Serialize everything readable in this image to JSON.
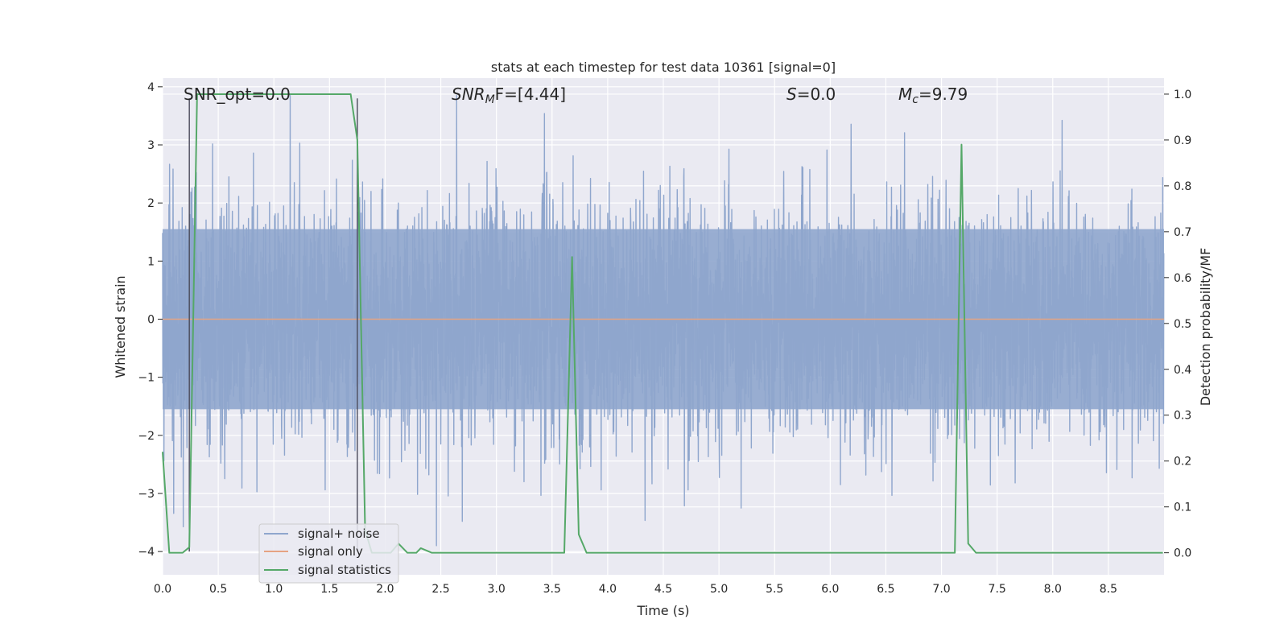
{
  "chart_data": {
    "type": "line",
    "title": "stats at each timestep for test data 10361 [signal=0]",
    "xlabel": "Time (s)",
    "ylabel": "Whitened strain",
    "y2label": "Detection probability/MF",
    "xlim": [
      0.0,
      9.0
    ],
    "ylim": [
      -4.4,
      4.15
    ],
    "y2lim": [
      -0.048,
      1.035
    ],
    "xticks": [
      "0.0",
      "0.5",
      "1.0",
      "1.5",
      "2.0",
      "2.5",
      "3.0",
      "3.5",
      "4.0",
      "4.5",
      "5.0",
      "5.5",
      "6.0",
      "6.5",
      "7.0",
      "7.5",
      "8.0",
      "8.5"
    ],
    "yticks": [
      "4",
      "3",
      "2",
      "1",
      "0",
      "−1",
      "−2",
      "−3",
      "−4"
    ],
    "y2ticks": [
      "1.0",
      "0.9",
      "0.8",
      "0.7",
      "0.6",
      "0.5",
      "0.4",
      "0.3",
      "0.2",
      "0.1",
      "0.0"
    ],
    "grid": true,
    "legend_position": "lower-left",
    "legend": [
      {
        "label": "signal+ noise",
        "color": "#8fa6cd"
      },
      {
        "label": "signal only",
        "color": "#e6a383"
      },
      {
        "label": "signal statistics",
        "color": "#55a868"
      }
    ],
    "annotations": {
      "snr_opt": "SNR_opt=0.0",
      "snr_mf": "SNR",
      "snr_mf_sub": "M",
      "snr_mf_rest": "F=[4.44]",
      "s": "S",
      "s_rest": "=0.0",
      "mc": "M",
      "mc_sub": "c",
      "mc_rest": "=9.79"
    },
    "noise": {
      "sample_rate_hz": 512,
      "core_amplitude": 1.55,
      "min": -3.9,
      "max": 3.85,
      "seed": 10361
    },
    "signal_only": {
      "value": 0.0
    },
    "vertical_markers": [
      {
        "x": 0.24,
        "y_top": 3.8,
        "y_bottom": -4.0
      },
      {
        "x": 1.75,
        "y_top": 3.8,
        "y_bottom": -4.0
      }
    ],
    "statistics_series": {
      "x": [
        0.0,
        0.06,
        0.18,
        0.24,
        0.31,
        1.69,
        1.75,
        1.82,
        1.88,
        1.95,
        2.05,
        2.12,
        2.2,
        2.28,
        2.32,
        2.42,
        2.5,
        3.61,
        3.68,
        3.74,
        3.81,
        3.9,
        7.12,
        7.18,
        7.24,
        7.31,
        7.4,
        8.99
      ],
      "y": [
        0.22,
        0.0,
        0.0,
        0.012,
        1.0,
        1.0,
        0.9,
        0.05,
        0.0,
        0.0,
        0.0,
        0.02,
        0.0,
        0.0,
        0.01,
        0.0,
        0.0,
        0.0,
        0.645,
        0.04,
        0.0,
        0.0,
        0.0,
        0.89,
        0.02,
        0.0,
        0.0,
        0.0
      ]
    }
  }
}
